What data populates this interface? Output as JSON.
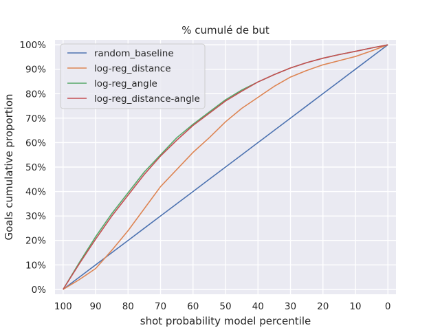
{
  "chart_data": {
    "type": "line",
    "title": "% cumulé de but",
    "xlabel": "shot probability model percentile",
    "ylabel": "Goals cumulative proportion",
    "xlim": [
      102.5,
      -2.5
    ],
    "ylim": [
      -0.02,
      1.02
    ],
    "x_ticks": [
      100,
      90,
      80,
      70,
      60,
      50,
      40,
      30,
      20,
      10,
      0
    ],
    "x_tick_labels": [
      "100",
      "90",
      "80",
      "70",
      "60",
      "50",
      "40",
      "30",
      "20",
      "10",
      "0"
    ],
    "y_ticks": [
      0,
      0.1,
      0.2,
      0.3,
      0.4,
      0.5,
      0.6,
      0.7,
      0.8,
      0.9,
      1.0
    ],
    "y_tick_labels": [
      "0%",
      "10%",
      "20%",
      "30%",
      "40%",
      "50%",
      "60%",
      "70%",
      "80%",
      "90%",
      "100%"
    ],
    "x": [
      100,
      95,
      90,
      85,
      80,
      75,
      70,
      65,
      60,
      55,
      50,
      45,
      40,
      35,
      30,
      25,
      20,
      15,
      10,
      5,
      0
    ],
    "grid": true,
    "legend_position": "top-left",
    "series": [
      {
        "name": "random_baseline",
        "color": "#4c72b0",
        "values": [
          0,
          0.05,
          0.1,
          0.15,
          0.2,
          0.25,
          0.3,
          0.35,
          0.4,
          0.45,
          0.5,
          0.55,
          0.6,
          0.65,
          0.7,
          0.75,
          0.8,
          0.85,
          0.9,
          0.95,
          1.0
        ]
      },
      {
        "name": "log-reg_distance",
        "color": "#dd8452",
        "values": [
          0,
          0.04,
          0.085,
          0.16,
          0.24,
          0.33,
          0.42,
          0.49,
          0.56,
          0.62,
          0.685,
          0.74,
          0.785,
          0.83,
          0.868,
          0.895,
          0.918,
          0.935,
          0.952,
          0.975,
          1.0
        ]
      },
      {
        "name": "log-reg_angle",
        "color": "#55a868",
        "values": [
          0,
          0.11,
          0.215,
          0.31,
          0.395,
          0.48,
          0.55,
          0.62,
          0.675,
          0.725,
          0.775,
          0.815,
          0.848,
          0.878,
          0.905,
          0.927,
          0.945,
          0.96,
          0.973,
          0.987,
          1.0
        ]
      },
      {
        "name": "log-reg_distance-angle",
        "color": "#c44e52",
        "values": [
          0,
          0.105,
          0.205,
          0.3,
          0.385,
          0.47,
          0.545,
          0.61,
          0.67,
          0.72,
          0.77,
          0.81,
          0.848,
          0.878,
          0.905,
          0.927,
          0.945,
          0.96,
          0.973,
          0.987,
          1.0
        ]
      }
    ]
  }
}
